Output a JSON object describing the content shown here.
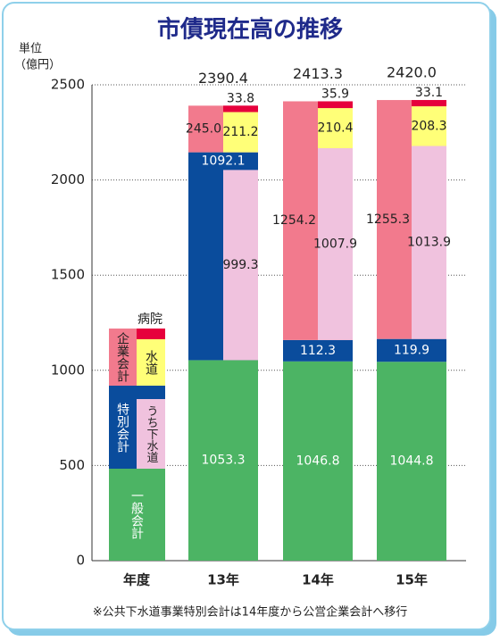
{
  "chart_data": {
    "type": "stacked-bar",
    "title": "市債現在高の推移",
    "y_unit": "単位",
    "y_unit_sub": "（億円）",
    "x_legend_label": "年度",
    "footnote": "※公共下水道事業特別会計は14年度から公営企業会計へ移行",
    "categories": [
      "13年",
      "14年",
      "15年"
    ],
    "ylim": [
      0,
      2500
    ],
    "yticks": [
      0,
      500,
      1000,
      1500,
      2000,
      2500
    ],
    "grid": true,
    "series": [
      {
        "name": "一般会計",
        "color": "#4cb464",
        "values": [
          1053.3,
          1046.8,
          1044.8
        ],
        "value_labels": [
          "1053.3",
          "1046.8",
          "1044.8"
        ]
      },
      {
        "name": "特別会計",
        "color": "#0a4c9c",
        "values": [
          1092.1,
          112.3,
          119.9
        ],
        "value_labels": [
          "1092.1",
          "112.3",
          "119.9"
        ]
      },
      {
        "name": "企業会計",
        "color": "#f27a8d",
        "values": [
          245.0,
          1254.2,
          1255.3
        ],
        "value_labels": [
          "245.0",
          "1254.2",
          "1255.3"
        ]
      }
    ],
    "breakdown_series": [
      {
        "name": "うち下水道",
        "color": "#f0c2de",
        "values": [
          999.3,
          1007.9,
          1013.9
        ],
        "value_labels": [
          "999.3",
          "1007.9",
          "1013.9"
        ]
      },
      {
        "name": "水道",
        "color": "#ffff78",
        "values": [
          211.2,
          210.4,
          208.3
        ],
        "value_labels": [
          "211.2",
          "210.4",
          "208.3"
        ]
      },
      {
        "name": "病院",
        "color": "#e6003c",
        "values": [
          33.8,
          35.9,
          33.1
        ],
        "value_labels": [
          "33.8",
          "35.9",
          "33.1"
        ]
      }
    ],
    "totals": {
      "values": [
        2390.4,
        2413.3,
        2420.0
      ],
      "value_labels": [
        "2390.4",
        "2413.3",
        "2420.0"
      ]
    }
  }
}
